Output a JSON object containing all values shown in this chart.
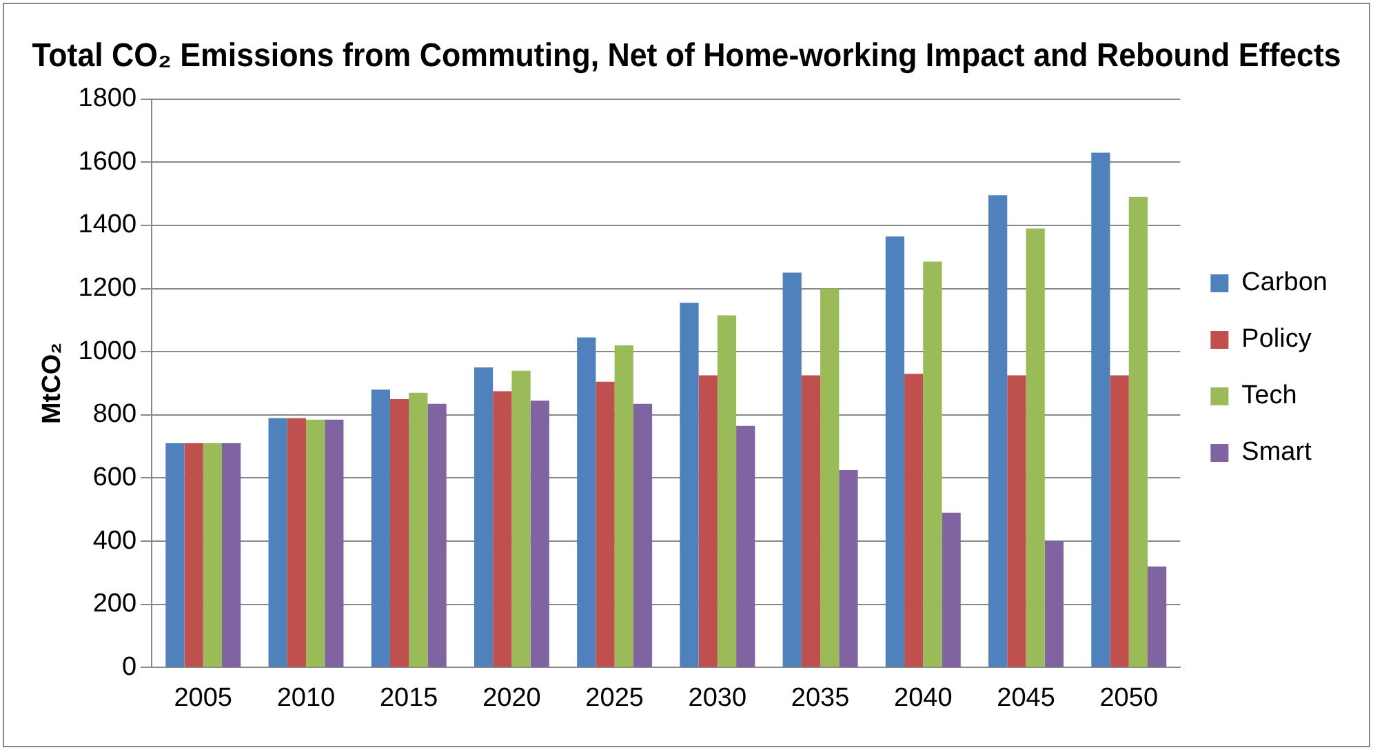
{
  "chart_data": {
    "type": "bar",
    "title": "Total CO₂ Emissions from Commuting, Net of Home-working Impact and Rebound Effects",
    "ylabel": "MtCO₂",
    "categories": [
      "2005",
      "2010",
      "2015",
      "2020",
      "2025",
      "2030",
      "2035",
      "2040",
      "2045",
      "2050"
    ],
    "series": [
      {
        "name": "Carbon",
        "color": "#4f81bd",
        "values": [
          710,
          790,
          880,
          950,
          1045,
          1155,
          1250,
          1365,
          1495,
          1630
        ]
      },
      {
        "name": "Policy",
        "color": "#c0504d",
        "values": [
          710,
          790,
          850,
          875,
          905,
          925,
          925,
          930,
          925,
          925
        ]
      },
      {
        "name": "Tech",
        "color": "#9bbb59",
        "values": [
          710,
          785,
          870,
          940,
          1020,
          1115,
          1200,
          1285,
          1390,
          1490
        ]
      },
      {
        "name": "Smart",
        "color": "#8064a2",
        "values": [
          710,
          785,
          835,
          845,
          835,
          765,
          625,
          490,
          400,
          320
        ]
      }
    ],
    "ylim": [
      0,
      1800
    ],
    "yticks": [
      0,
      200,
      400,
      600,
      800,
      1000,
      1200,
      1400,
      1600,
      1800
    ],
    "grid": "y",
    "legend": "right"
  }
}
